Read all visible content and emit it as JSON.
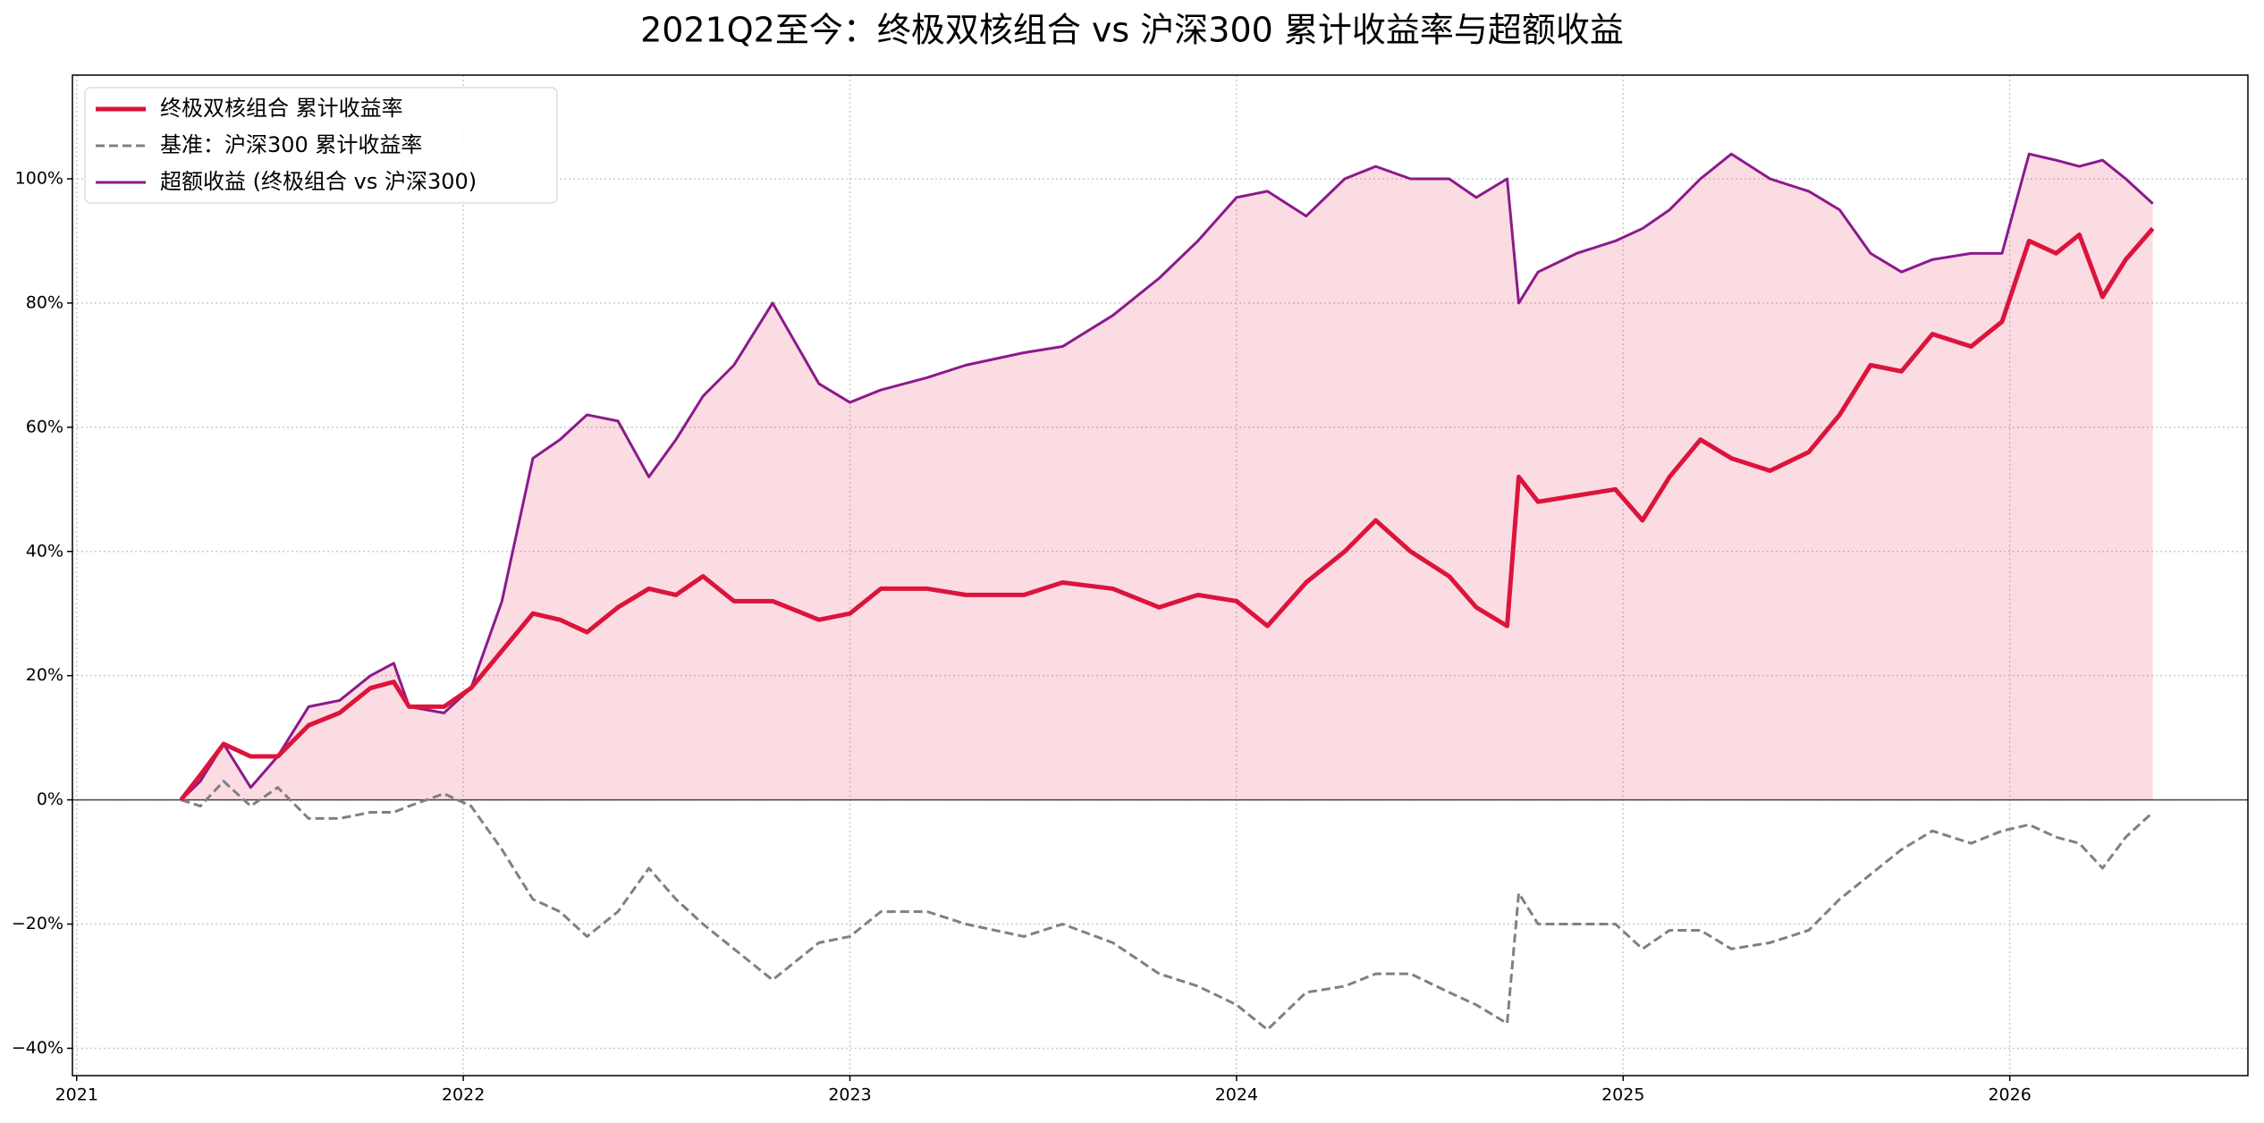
{
  "chart_data": {
    "type": "line",
    "title": "2021Q2至今：终极双核组合 vs 沪深300 累计收益率与超额收益",
    "x": [
      2021.27,
      2021.32,
      2021.38,
      2021.45,
      2021.52,
      2021.6,
      2021.68,
      2021.76,
      2021.82,
      2021.86,
      2021.95,
      2022.02,
      2022.1,
      2022.18,
      2022.25,
      2022.32,
      2022.4,
      2022.48,
      2022.55,
      2022.62,
      2022.7,
      2022.8,
      2022.92,
      2023.0,
      2023.08,
      2023.2,
      2023.3,
      2023.45,
      2023.55,
      2023.68,
      2023.8,
      2023.9,
      2024.0,
      2024.08,
      2024.18,
      2024.28,
      2024.36,
      2024.45,
      2024.55,
      2024.62,
      2024.7,
      2024.73,
      2024.78,
      2024.88,
      2024.98,
      2025.05,
      2025.12,
      2025.2,
      2025.28,
      2025.38,
      2025.48,
      2025.56,
      2025.64,
      2025.72,
      2025.8,
      2025.9,
      2025.98,
      2026.05,
      2026.12,
      2026.18,
      2026.24,
      2026.3,
      2026.37
    ],
    "series": [
      {
        "name": "终极双核组合 累计收益率",
        "color": "#dc143c",
        "width": 5,
        "dashed": false,
        "fill": false,
        "values": [
          0,
          4,
          9,
          7,
          7,
          12,
          14,
          18,
          19,
          15,
          15,
          18,
          24,
          30,
          29,
          27,
          31,
          34,
          33,
          36,
          32,
          32,
          29,
          30,
          34,
          34,
          33,
          33,
          35,
          34,
          31,
          33,
          32,
          28,
          35,
          40,
          45,
          40,
          36,
          31,
          28,
          52,
          48,
          49,
          50,
          45,
          52,
          58,
          55,
          53,
          56,
          62,
          70,
          69,
          75,
          73,
          77,
          90,
          88,
          91,
          81,
          87,
          92
        ]
      },
      {
        "name": "基准：沪深300 累计收益率",
        "color": "#808080",
        "width": 3,
        "dashed": true,
        "fill": false,
        "values": [
          0,
          -1,
          3,
          -1,
          2,
          -3,
          -3,
          -2,
          -2,
          -1,
          1,
          -1,
          -8,
          -16,
          -18,
          -22,
          -18,
          -11,
          -16,
          -20,
          -24,
          -29,
          -23,
          -22,
          -18,
          -18,
          -20,
          -22,
          -20,
          -23,
          -28,
          -30,
          -33,
          -37,
          -31,
          -30,
          -28,
          -28,
          -31,
          -33,
          -36,
          -15,
          -20,
          -20,
          -20,
          -24,
          -21,
          -21,
          -24,
          -23,
          -21,
          -16,
          -12,
          -8,
          -5,
          -7,
          -5,
          -4,
          -6,
          -7,
          -11,
          -6,
          -2
        ]
      },
      {
        "name": "超额收益 (终极组合 vs 沪深300)",
        "color": "#8b1a8b",
        "width": 3,
        "dashed": false,
        "fill": true,
        "values": [
          0,
          3,
          9,
          2,
          7,
          15,
          16,
          20,
          22,
          15,
          14,
          18,
          32,
          55,
          58,
          62,
          61,
          52,
          58,
          65,
          70,
          80,
          67,
          64,
          66,
          68,
          70,
          72,
          73,
          78,
          84,
          90,
          97,
          98,
          94,
          100,
          102,
          100,
          100,
          97,
          100,
          80,
          85,
          88,
          90,
          92,
          95,
          100,
          104,
          100,
          98,
          95,
          88,
          85,
          87,
          88,
          88,
          104,
          103,
          102,
          103,
          100,
          96
        ]
      }
    ],
    "xlim": [
      2020.989,
      2026.616
    ],
    "xticks": [
      2021,
      2022,
      2023,
      2024,
      2025,
      2026
    ],
    "ylim": [
      -44.4,
      116.7
    ],
    "yticks": [
      {
        "value": -40,
        "label": "−40%"
      },
      {
        "value": -20,
        "label": "−20%"
      },
      {
        "value": 0,
        "label": "0%"
      },
      {
        "value": 20,
        "label": "20%"
      },
      {
        "value": 40,
        "label": "40%"
      },
      {
        "value": 60,
        "label": "60%"
      },
      {
        "value": 80,
        "label": "80%"
      },
      {
        "value": 100,
        "label": "100%"
      }
    ],
    "grid": true,
    "legend": "upper-left"
  }
}
